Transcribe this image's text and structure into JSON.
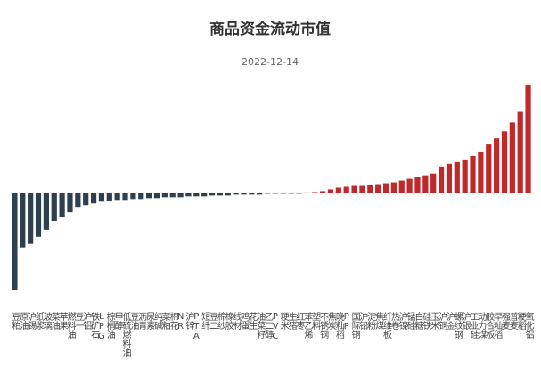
{
  "chart_data": {
    "type": "bar",
    "title": "商品资金流动市值",
    "subtitle": "2022-12-14",
    "categories": [
      "豆粕",
      "原油",
      "沪锡",
      "纸浆",
      "玻璃",
      "菜油",
      "苹果",
      "燃料油",
      "豆一",
      "沪铝",
      "铁矿石",
      "LPG",
      "棕榈油",
      "甲醇",
      "低硫燃料油",
      "豆油",
      "沥青",
      "尿素",
      "纯碱",
      "菜粕",
      "棉花",
      "NR",
      "沪锌",
      "PTA",
      "短纤",
      "豆二",
      "棉纱",
      "橡胶",
      "线材",
      "鸡蛋",
      "花生",
      "油菜籽",
      "乙二醇",
      "PVC",
      "粳米",
      "生猪",
      "红枣",
      "苯乙烯",
      "塑料",
      "不锈钢",
      "焦炭",
      "晚籼稻",
      "PP",
      "国际铜",
      "沪铅",
      "淀粉",
      "焦煤",
      "纤维板",
      "热卷",
      "沪镍",
      "锰硅",
      "白糖",
      "硅铁",
      "玉米",
      "沪铜",
      "沪金",
      "螺纹钢",
      "沪银",
      "工业硅",
      "动力煤",
      "胶合板",
      "早籼稻",
      "强麦",
      "普麦",
      "粳稻",
      "氧化铝"
    ],
    "values": [
      -110,
      -62,
      -58,
      -50,
      -42,
      -32,
      -27,
      -22,
      -16,
      -14,
      -12,
      -10,
      -9,
      -8,
      -8,
      -7,
      -7,
      -6,
      -6,
      -5,
      -5,
      -5,
      -4,
      -4,
      -4,
      -3,
      -3,
      -3,
      -2,
      -2,
      -2,
      -2,
      -1,
      -1,
      -1,
      -1,
      -1,
      0.5,
      1,
      2,
      4,
      6,
      7,
      8,
      8,
      9,
      10,
      11,
      12,
      14,
      16,
      18,
      20,
      22,
      30,
      33,
      35,
      38,
      42,
      47,
      55,
      62,
      70,
      80,
      92,
      123
    ],
    "positive_color": "#c0292b",
    "negative_color": "#2e4050",
    "ylim": [
      -115,
      130
    ]
  }
}
